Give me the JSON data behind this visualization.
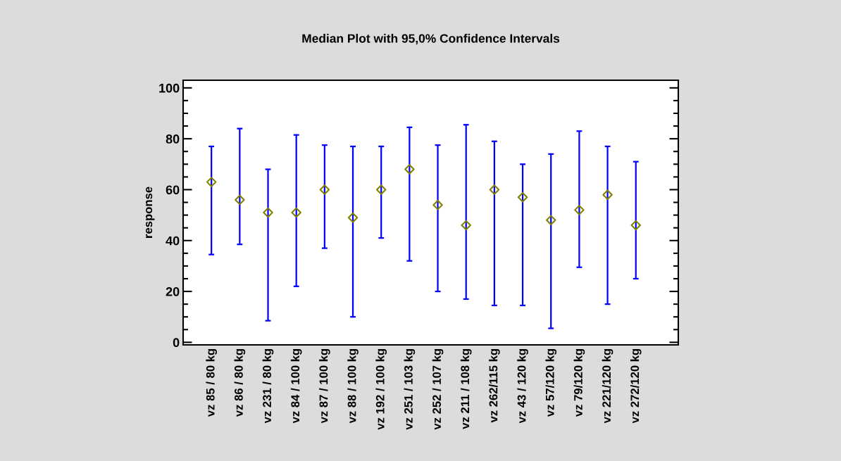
{
  "chart_data": {
    "type": "scatter",
    "title": "Median Plot with 95,0% Confidence Intervals",
    "ylabel": "response",
    "categories": [
      "vz 85 / 80 kg",
      "vz 86 / 80 kg",
      "vz 231 / 80 kg",
      "vz 84 / 100 kg",
      "vz 87 / 100 kg",
      "vz 88 / 100 kg",
      "vz 192 / 100 kg",
      "vz 251 / 103 kg",
      "vz 252 / 107 kg",
      "vz 211 / 108 kg",
      "vz 262/115 kg",
      "vz 43 / 120 kg",
      "vz 57/120 kg",
      "vz 79/120 kg",
      "vz 221/120 kg",
      "vz 272/120 kg"
    ],
    "series": [
      {
        "color": "#808000",
        "values": [
          63,
          56,
          51,
          51,
          60,
          49,
          60,
          68,
          54,
          46,
          60,
          57,
          48,
          52,
          58,
          46
        ],
        "errors": [
          [
            34.5,
            77
          ],
          [
            38.5,
            84
          ],
          [
            8.5,
            68
          ],
          [
            22,
            81.5
          ],
          [
            37,
            77.5
          ],
          [
            10,
            77
          ],
          [
            41,
            77
          ],
          [
            32,
            84.5
          ],
          [
            20,
            77.5
          ],
          [
            17,
            85.5
          ],
          [
            14.5,
            79
          ],
          [
            14.5,
            70
          ],
          [
            5.5,
            74
          ],
          [
            29.5,
            83
          ],
          [
            15,
            77
          ],
          [
            25,
            71
          ]
        ]
      }
    ],
    "marker": "diamond",
    "ylim": [
      -1,
      103
    ],
    "yticks": [
      0,
      20,
      40,
      60,
      80,
      100
    ],
    "grid": false
  }
}
